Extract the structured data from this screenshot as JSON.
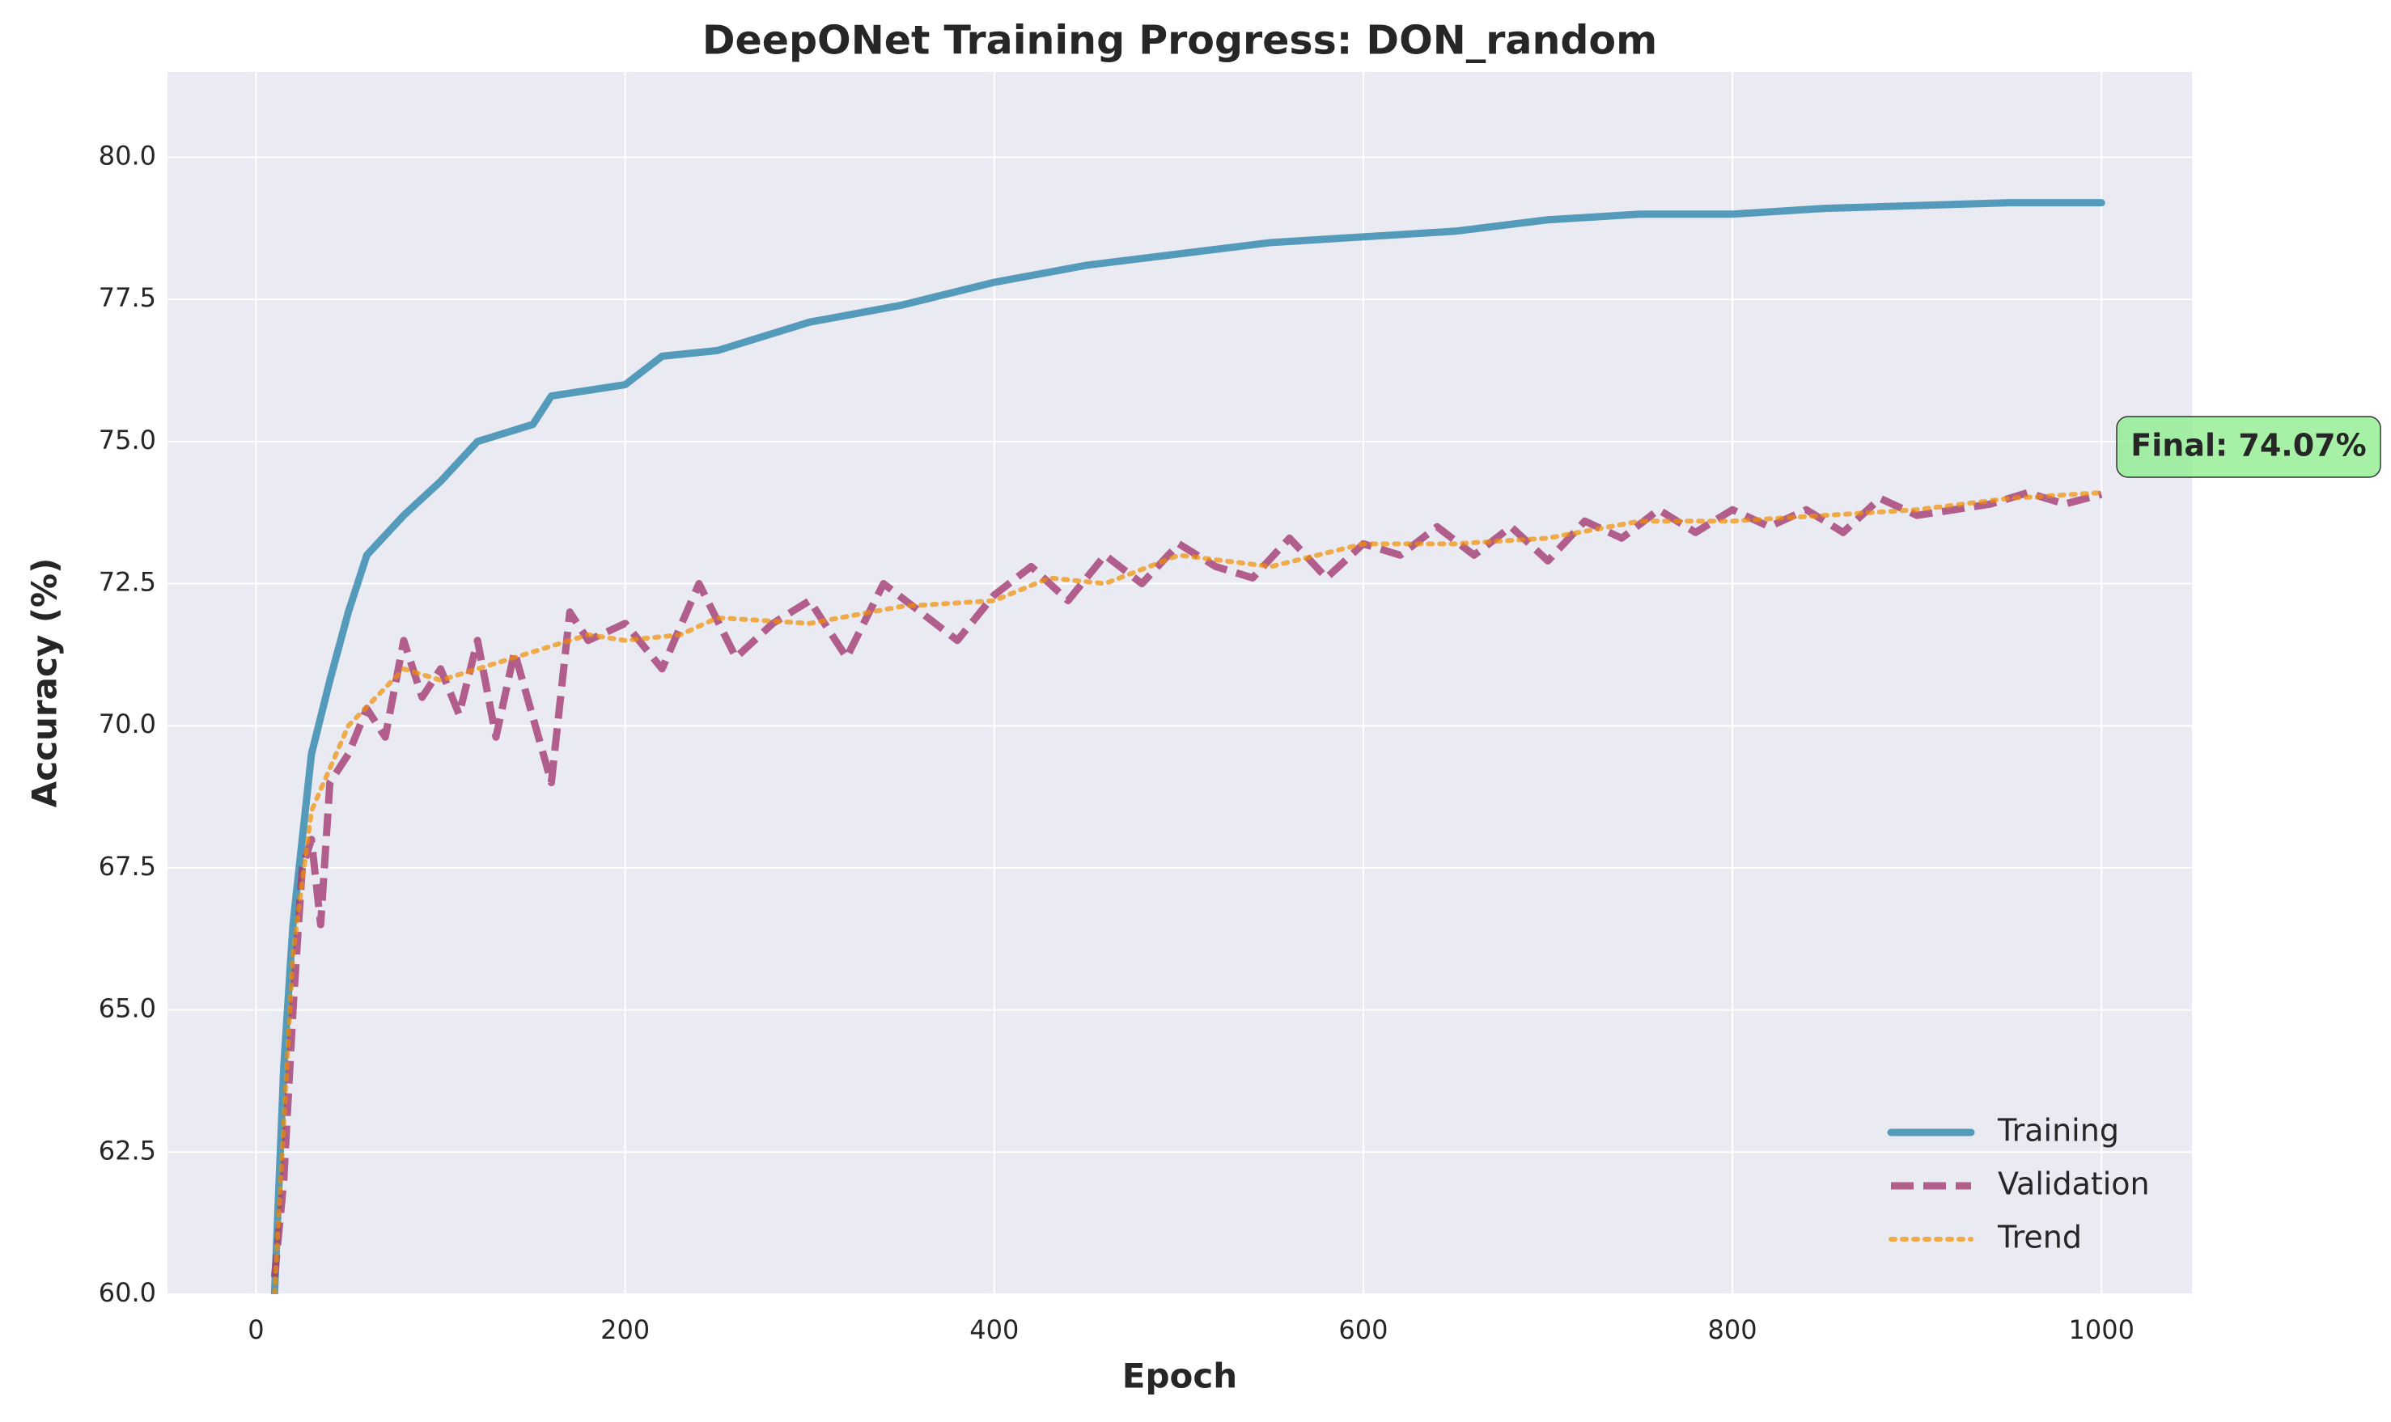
{
  "chart_data": {
    "type": "line",
    "title": "DeepONet Training Progress: DON_random",
    "x_label": "Epoch",
    "y_label": "Accuracy (%)",
    "xlim": [
      -48,
      1049
    ],
    "ylim": [
      60,
      81.5
    ],
    "xticks": [
      0,
      200,
      400,
      600,
      800,
      1000
    ],
    "yticks": [
      {
        "value": 60,
        "label": "60.0"
      },
      {
        "value": 62.5,
        "label": "62.5"
      },
      {
        "value": 65,
        "label": "65.0"
      },
      {
        "value": 67.5,
        "label": "67.5"
      },
      {
        "value": 70,
        "label": "70.0"
      },
      {
        "value": 72.5,
        "label": "72.5"
      },
      {
        "value": 75,
        "label": "75.0"
      },
      {
        "value": 77.5,
        "label": "77.5"
      },
      {
        "value": 80,
        "label": "80.0"
      }
    ],
    "grid": true,
    "legend_loc": "lower right",
    "annotation": "Final: 74.07%",
    "series": [
      {
        "name": "Training",
        "color": "#2E86AB",
        "style": "solid",
        "x": [
          10,
          15,
          20,
          25,
          30,
          40,
          50,
          60,
          80,
          100,
          120,
          150,
          160,
          200,
          220,
          250,
          300,
          350,
          400,
          450,
          500,
          550,
          600,
          650,
          700,
          750,
          800,
          850,
          900,
          950,
          1000
        ],
        "values": [
          60,
          64,
          66.5,
          68,
          69.5,
          70.8,
          72,
          73,
          73.7,
          74.3,
          75,
          75.3,
          75.8,
          76,
          76.5,
          76.6,
          77.1,
          77.4,
          77.8,
          78.1,
          78.3,
          78.5,
          78.6,
          78.7,
          78.9,
          79.0,
          79.0,
          79.1,
          79.15,
          79.2,
          79.2
        ]
      },
      {
        "name": "Validation",
        "color": "#A23B72",
        "style": "dashed",
        "x": [
          10,
          15,
          20,
          25,
          30,
          35,
          40,
          50,
          60,
          70,
          80,
          90,
          100,
          110,
          120,
          130,
          140,
          160,
          170,
          180,
          200,
          220,
          240,
          260,
          280,
          300,
          320,
          340,
          360,
          380,
          400,
          420,
          440,
          460,
          480,
          500,
          520,
          540,
          560,
          580,
          600,
          620,
          640,
          660,
          680,
          700,
          720,
          740,
          760,
          780,
          800,
          820,
          840,
          860,
          880,
          900,
          920,
          940,
          960,
          980,
          1000
        ],
        "values": [
          60.3,
          62,
          65,
          67.5,
          68,
          66.5,
          69,
          69.5,
          70.3,
          69.8,
          71.5,
          70.5,
          71,
          70.2,
          71.5,
          69.8,
          71.3,
          69,
          72,
          71.5,
          71.8,
          71,
          72.5,
          71.2,
          71.8,
          72.2,
          71.2,
          72.5,
          72,
          71.5,
          72.3,
          72.8,
          72.2,
          73,
          72.5,
          73.2,
          72.8,
          72.6,
          73.3,
          72.6,
          73.2,
          73,
          73.5,
          73,
          73.5,
          72.9,
          73.6,
          73.3,
          73.8,
          73.4,
          73.8,
          73.5,
          73.8,
          73.4,
          74,
          73.7,
          73.8,
          73.9,
          74.1,
          73.9,
          74.07
        ]
      },
      {
        "name": "Trend",
        "color": "#F18F01",
        "style": "dotted",
        "x": [
          10,
          20,
          30,
          50,
          80,
          100,
          150,
          180,
          200,
          230,
          250,
          300,
          350,
          400,
          430,
          460,
          500,
          550,
          600,
          650,
          700,
          750,
          800,
          850,
          900,
          950,
          1000
        ],
        "values": [
          60,
          66,
          68.5,
          70,
          71,
          70.8,
          71.3,
          71.6,
          71.5,
          71.6,
          71.9,
          71.8,
          72.1,
          72.2,
          72.6,
          72.5,
          73,
          72.8,
          73.2,
          73.2,
          73.3,
          73.6,
          73.6,
          73.7,
          73.8,
          74,
          74.1
        ]
      }
    ]
  }
}
